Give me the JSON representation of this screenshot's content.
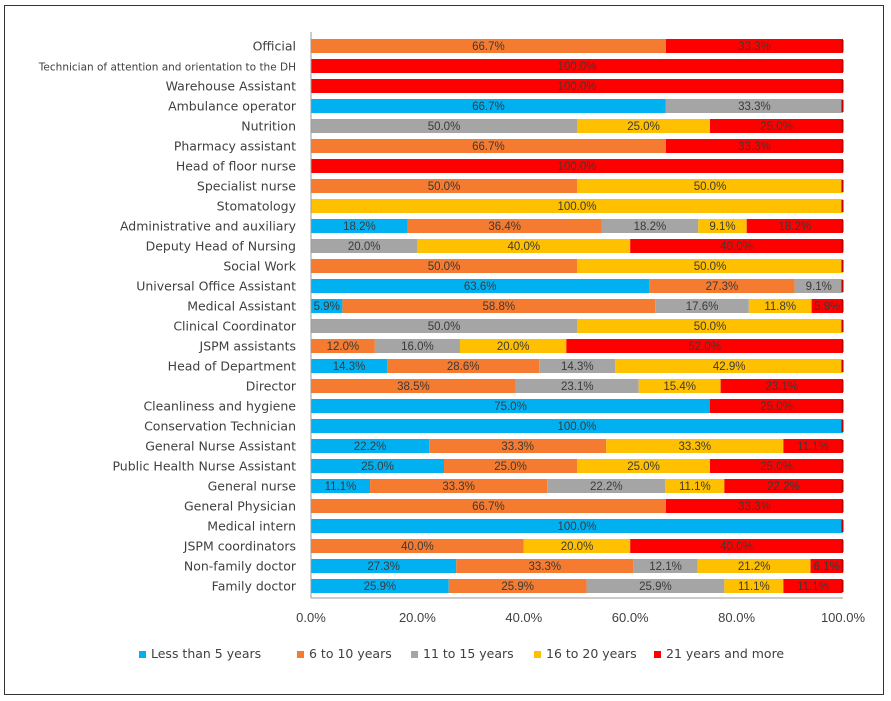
{
  "chart_data": {
    "type": "bar",
    "orientation": "horizontal",
    "stacked": "percent",
    "title": "",
    "xlabel": "",
    "ylabel": "",
    "xlim": [
      0,
      100
    ],
    "x_ticks": [
      "0.0%",
      "20.0%",
      "40.0%",
      "60.0%",
      "80.0%",
      "100.0%"
    ],
    "grid": false,
    "legend_position": "bottom",
    "categories": [
      "Official",
      "Technician of attention and orientation to the DH",
      "Warehouse Assistant",
      "Ambulance operator",
      "Nutrition",
      "Pharmacy assistant",
      "Head of floor nurse",
      "Specialist nurse",
      "Stomatology",
      "Administrative and auxiliary",
      "Deputy Head of Nursing",
      "Social Work",
      "Universal Office Assistant",
      "Medical Assistant",
      "Clinical Coordinator",
      "JSPM assistants",
      "Head of Department",
      "Director",
      "Cleanliness and hygiene",
      "Conservation Technician",
      "General Nurse Assistant",
      "Public Health Nurse Assistant",
      "General nurse",
      "General Physician",
      "Medical intern",
      "JSPM coordinators",
      "Non-family doctor",
      "Family doctor"
    ],
    "series": [
      {
        "name": "Less than 5 years",
        "color": "#00b0f0",
        "values": [
          0,
          0,
          0,
          66.7,
          0,
          0,
          0,
          0,
          0,
          18.2,
          0,
          0,
          63.6,
          5.9,
          0,
          0,
          14.3,
          0,
          75.0,
          100.0,
          22.2,
          25.0,
          11.1,
          0,
          100.0,
          0,
          27.3,
          25.9
        ]
      },
      {
        "name": "6 to 10 years",
        "color": "#f47b30",
        "values": [
          66.7,
          0,
          0,
          0,
          0,
          66.7,
          0,
          50.0,
          0,
          36.4,
          0,
          50.0,
          27.3,
          58.8,
          0,
          12.0,
          28.6,
          38.5,
          0,
          0,
          33.3,
          25.0,
          33.3,
          66.7,
          0,
          40.0,
          33.3,
          25.9
        ]
      },
      {
        "name": "11 to 15 years",
        "color": "#a5a5a5",
        "values": [
          0,
          0,
          0,
          33.3,
          50.0,
          0,
          0,
          0,
          0,
          18.2,
          20.0,
          0,
          9.1,
          17.6,
          50.0,
          16.0,
          14.3,
          23.1,
          0,
          0,
          0,
          0,
          22.2,
          0,
          0,
          0,
          12.1,
          25.9
        ]
      },
      {
        "name": "16 to 20 years",
        "color": "#ffc000",
        "values": [
          0,
          0,
          0,
          0,
          25.0,
          0,
          0,
          50.0,
          100.0,
          9.1,
          40.0,
          50.0,
          0,
          11.8,
          50.0,
          20.0,
          42.9,
          15.4,
          0,
          0,
          33.3,
          25.0,
          11.1,
          0,
          0,
          20.0,
          21.2,
          11.1
        ]
      },
      {
        "name": "21 years and more",
        "color": "#ff0000",
        "values": [
          33.3,
          100.0,
          100.0,
          0,
          25.0,
          33.3,
          100.0,
          0,
          0,
          18.2,
          40.0,
          0,
          0,
          5.9,
          0,
          52.0,
          0,
          23.1,
          25.0,
          0,
          11.1,
          25.0,
          22.2,
          33.3,
          0,
          40.0,
          6.1,
          11.1
        ]
      }
    ]
  }
}
